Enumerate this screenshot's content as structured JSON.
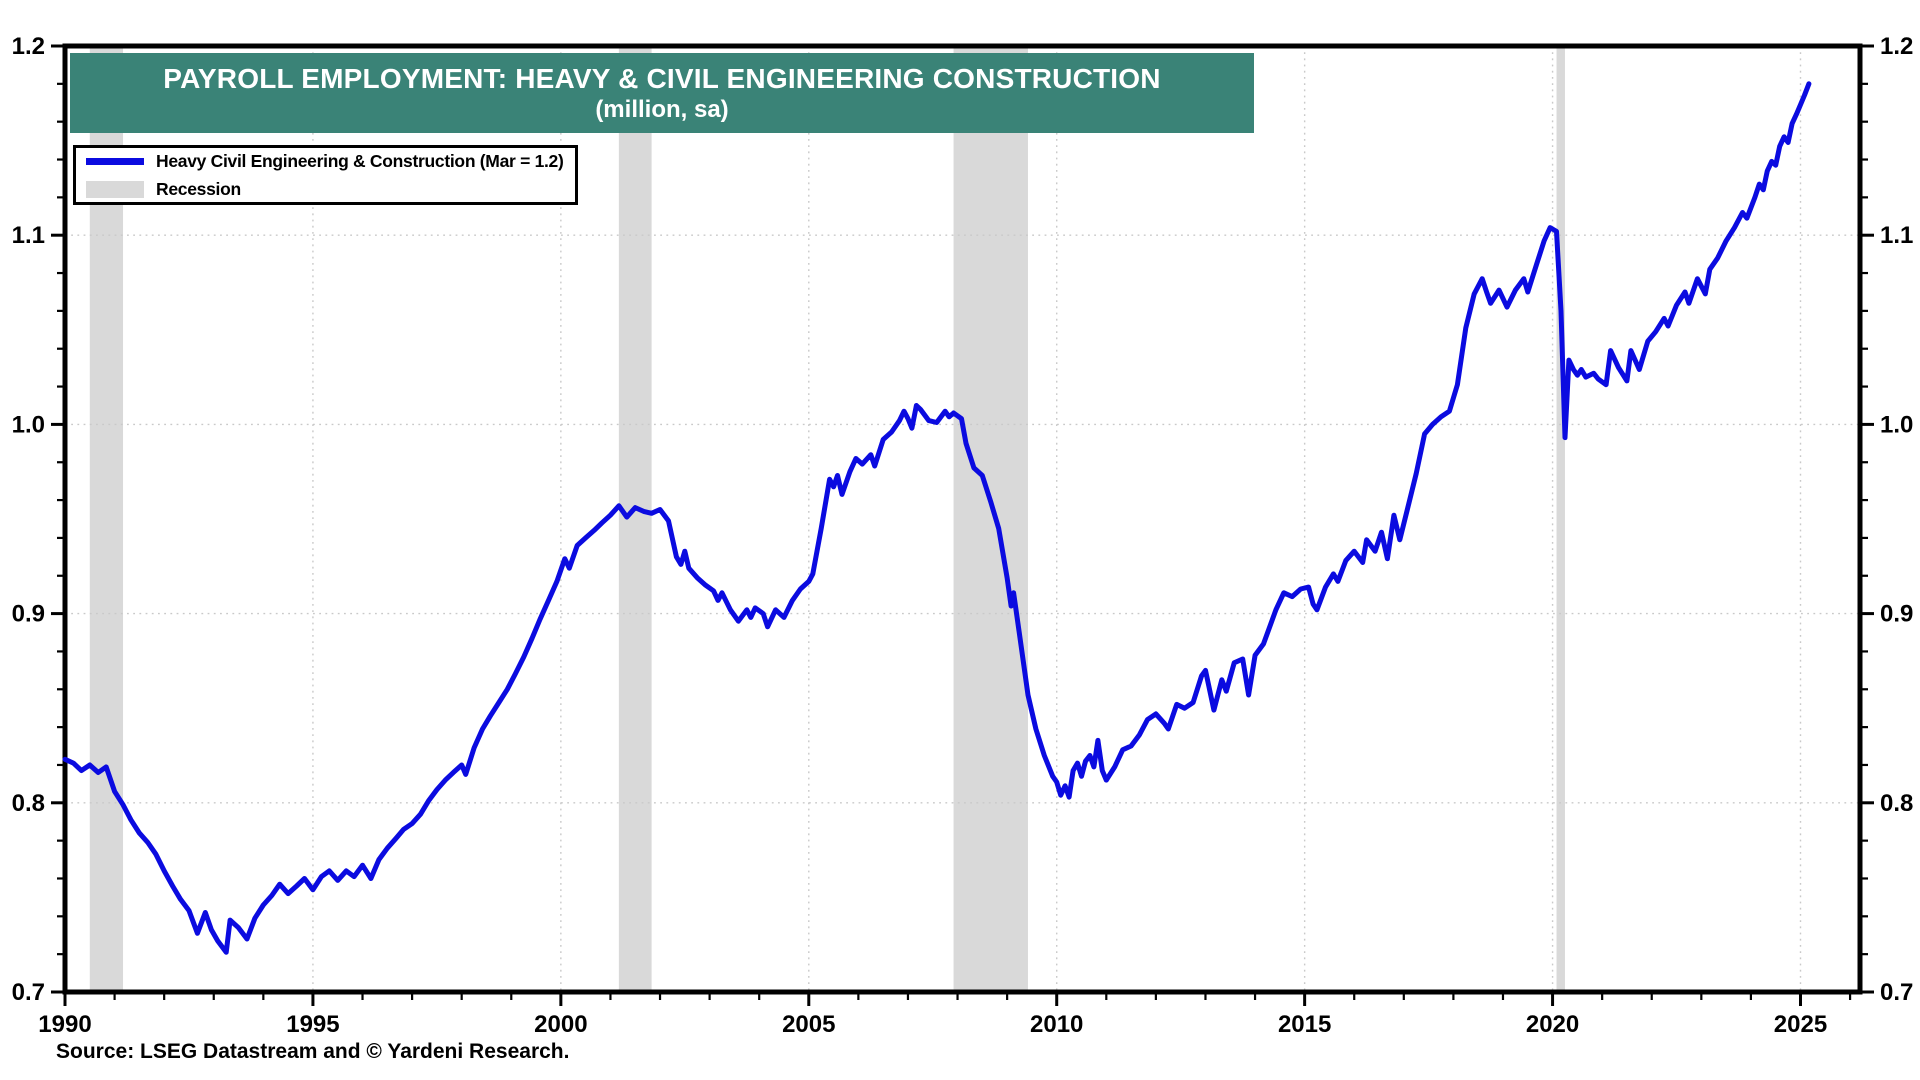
{
  "banner": {
    "title": "PAYROLL EMPLOYMENT: HEAVY & CIVIL ENGINEERING CONSTRUCTION",
    "subtitle": "(million, sa)"
  },
  "legend": {
    "series_label": "Heavy Civil Engineering & Construction (Mar = 1.2)",
    "recession_label": "Recession"
  },
  "source_note": "Source: LSEG Datastream and © Yardeni Research.",
  "chart_data": {
    "type": "line",
    "title": "PAYROLL EMPLOYMENT: HEAVY & CIVIL ENGINEERING CONSTRUCTION",
    "subtitle": "(million, sa)",
    "xlabel": "",
    "ylabel": "million, seasonally adjusted",
    "xlim": [
      1990,
      2026.2
    ],
    "ylim": [
      0.7,
      1.2
    ],
    "x_tick_labels": [
      "1990",
      "1995",
      "2000",
      "2005",
      "2010",
      "2015",
      "2020",
      "2025"
    ],
    "y_tick_labels": [
      "0.7",
      "0.8",
      "0.9",
      "1.0",
      "1.1",
      "1.2"
    ],
    "y_minor_step": 0.02,
    "x_minor_step_years": 1,
    "grid": "dotted lines at major ticks, both axes",
    "legend_position": "top-left",
    "dual_y_axis": true,
    "recession_bands": [
      [
        1990.5,
        1991.17
      ],
      [
        2001.17,
        2001.83
      ],
      [
        2007.92,
        2009.42
      ],
      [
        2020.08,
        2020.25
      ]
    ],
    "colors": {
      "line": "#0b0be0",
      "recession": "#d9d9d9",
      "banner": "#3a8377",
      "grid": "#c9c9c9",
      "axis": "#000000",
      "legend_border": "#000000"
    },
    "series": [
      {
        "name": "Heavy Civil Engineering & Construction",
        "frequency": "monthly (anchor points, year-fraction vs million)",
        "last_point_label": "Mar 2025 = 1.18",
        "points": [
          [
            1990.0,
            0.823
          ],
          [
            1990.17,
            0.821
          ],
          [
            1990.33,
            0.817
          ],
          [
            1990.5,
            0.82
          ],
          [
            1990.67,
            0.816
          ],
          [
            1990.83,
            0.819
          ],
          [
            1991.0,
            0.806
          ],
          [
            1991.17,
            0.799
          ],
          [
            1991.33,
            0.791
          ],
          [
            1991.5,
            0.784
          ],
          [
            1991.67,
            0.779
          ],
          [
            1991.83,
            0.773
          ],
          [
            1992.0,
            0.764
          ],
          [
            1992.17,
            0.756
          ],
          [
            1992.33,
            0.749
          ],
          [
            1992.5,
            0.743
          ],
          [
            1992.67,
            0.731
          ],
          [
            1992.83,
            0.742
          ],
          [
            1992.95,
            0.733
          ],
          [
            1993.08,
            0.727
          ],
          [
            1993.25,
            0.721
          ],
          [
            1993.33,
            0.738
          ],
          [
            1993.5,
            0.734
          ],
          [
            1993.67,
            0.728
          ],
          [
            1993.83,
            0.739
          ],
          [
            1994.0,
            0.746
          ],
          [
            1994.17,
            0.751
          ],
          [
            1994.33,
            0.757
          ],
          [
            1994.5,
            0.752
          ],
          [
            1994.67,
            0.756
          ],
          [
            1994.83,
            0.76
          ],
          [
            1995.0,
            0.754
          ],
          [
            1995.17,
            0.761
          ],
          [
            1995.33,
            0.764
          ],
          [
            1995.5,
            0.759
          ],
          [
            1995.67,
            0.764
          ],
          [
            1995.83,
            0.761
          ],
          [
            1996.0,
            0.767
          ],
          [
            1996.17,
            0.76
          ],
          [
            1996.33,
            0.77
          ],
          [
            1996.5,
            0.776
          ],
          [
            1996.67,
            0.781
          ],
          [
            1996.83,
            0.786
          ],
          [
            1997.0,
            0.789
          ],
          [
            1997.17,
            0.794
          ],
          [
            1997.33,
            0.801
          ],
          [
            1997.5,
            0.807
          ],
          [
            1997.67,
            0.812
          ],
          [
            1997.83,
            0.816
          ],
          [
            1998.0,
            0.82
          ],
          [
            1998.08,
            0.815
          ],
          [
            1998.25,
            0.829
          ],
          [
            1998.42,
            0.839
          ],
          [
            1998.58,
            0.846
          ],
          [
            1998.75,
            0.853
          ],
          [
            1998.92,
            0.86
          ],
          [
            1999.08,
            0.868
          ],
          [
            1999.25,
            0.877
          ],
          [
            1999.42,
            0.887
          ],
          [
            1999.58,
            0.897
          ],
          [
            1999.75,
            0.907
          ],
          [
            1999.92,
            0.917
          ],
          [
            2000.08,
            0.929
          ],
          [
            2000.17,
            0.924
          ],
          [
            2000.33,
            0.936
          ],
          [
            2000.5,
            0.94
          ],
          [
            2000.67,
            0.944
          ],
          [
            2000.83,
            0.948
          ],
          [
            2001.0,
            0.952
          ],
          [
            2001.17,
            0.957
          ],
          [
            2001.33,
            0.951
          ],
          [
            2001.5,
            0.956
          ],
          [
            2001.67,
            0.954
          ],
          [
            2001.83,
            0.953
          ],
          [
            2002.0,
            0.955
          ],
          [
            2002.17,
            0.949
          ],
          [
            2002.33,
            0.93
          ],
          [
            2002.42,
            0.926
          ],
          [
            2002.5,
            0.933
          ],
          [
            2002.58,
            0.924
          ],
          [
            2002.75,
            0.919
          ],
          [
            2002.92,
            0.915
          ],
          [
            2003.08,
            0.912
          ],
          [
            2003.17,
            0.907
          ],
          [
            2003.25,
            0.911
          ],
          [
            2003.42,
            0.902
          ],
          [
            2003.58,
            0.896
          ],
          [
            2003.75,
            0.902
          ],
          [
            2003.83,
            0.898
          ],
          [
            2003.92,
            0.903
          ],
          [
            2004.08,
            0.9
          ],
          [
            2004.17,
            0.893
          ],
          [
            2004.33,
            0.902
          ],
          [
            2004.5,
            0.898
          ],
          [
            2004.67,
            0.907
          ],
          [
            2004.83,
            0.913
          ],
          [
            2005.0,
            0.917
          ],
          [
            2005.08,
            0.921
          ],
          [
            2005.25,
            0.945
          ],
          [
            2005.42,
            0.971
          ],
          [
            2005.5,
            0.967
          ],
          [
            2005.58,
            0.973
          ],
          [
            2005.67,
            0.963
          ],
          [
            2005.83,
            0.975
          ],
          [
            2005.95,
            0.982
          ],
          [
            2006.08,
            0.979
          ],
          [
            2006.25,
            0.984
          ],
          [
            2006.33,
            0.978
          ],
          [
            2006.5,
            0.992
          ],
          [
            2006.67,
            0.996
          ],
          [
            2006.83,
            1.002
          ],
          [
            2006.92,
            1.007
          ],
          [
            2007.0,
            1.003
          ],
          [
            2007.08,
            0.998
          ],
          [
            2007.17,
            1.01
          ],
          [
            2007.25,
            1.008
          ],
          [
            2007.42,
            1.002
          ],
          [
            2007.58,
            1.001
          ],
          [
            2007.75,
            1.007
          ],
          [
            2007.83,
            1.004
          ],
          [
            2007.92,
            1.006
          ],
          [
            2008.08,
            1.003
          ],
          [
            2008.17,
            0.99
          ],
          [
            2008.33,
            0.977
          ],
          [
            2008.5,
            0.973
          ],
          [
            2008.67,
            0.959
          ],
          [
            2008.83,
            0.945
          ],
          [
            2009.0,
            0.919
          ],
          [
            2009.08,
            0.904
          ],
          [
            2009.13,
            0.911
          ],
          [
            2009.25,
            0.889
          ],
          [
            2009.42,
            0.857
          ],
          [
            2009.58,
            0.839
          ],
          [
            2009.75,
            0.825
          ],
          [
            2009.92,
            0.814
          ],
          [
            2010.0,
            0.811
          ],
          [
            2010.08,
            0.804
          ],
          [
            2010.17,
            0.809
          ],
          [
            2010.25,
            0.803
          ],
          [
            2010.33,
            0.817
          ],
          [
            2010.42,
            0.821
          ],
          [
            2010.5,
            0.814
          ],
          [
            2010.58,
            0.822
          ],
          [
            2010.67,
            0.825
          ],
          [
            2010.75,
            0.819
          ],
          [
            2010.83,
            0.833
          ],
          [
            2010.92,
            0.817
          ],
          [
            2011.0,
            0.812
          ],
          [
            2011.17,
            0.819
          ],
          [
            2011.33,
            0.828
          ],
          [
            2011.5,
            0.83
          ],
          [
            2011.67,
            0.836
          ],
          [
            2011.83,
            0.844
          ],
          [
            2012.0,
            0.847
          ],
          [
            2012.17,
            0.842
          ],
          [
            2012.25,
            0.839
          ],
          [
            2012.42,
            0.852
          ],
          [
            2012.58,
            0.85
          ],
          [
            2012.75,
            0.853
          ],
          [
            2012.92,
            0.867
          ],
          [
            2013.0,
            0.87
          ],
          [
            2013.17,
            0.849
          ],
          [
            2013.33,
            0.865
          ],
          [
            2013.42,
            0.859
          ],
          [
            2013.58,
            0.874
          ],
          [
            2013.75,
            0.876
          ],
          [
            2013.87,
            0.857
          ],
          [
            2014.0,
            0.878
          ],
          [
            2014.17,
            0.884
          ],
          [
            2014.42,
            0.902
          ],
          [
            2014.58,
            0.911
          ],
          [
            2014.75,
            0.909
          ],
          [
            2014.92,
            0.913
          ],
          [
            2015.08,
            0.914
          ],
          [
            2015.17,
            0.905
          ],
          [
            2015.25,
            0.902
          ],
          [
            2015.42,
            0.914
          ],
          [
            2015.58,
            0.921
          ],
          [
            2015.67,
            0.917
          ],
          [
            2015.83,
            0.928
          ],
          [
            2016.0,
            0.933
          ],
          [
            2016.17,
            0.927
          ],
          [
            2016.25,
            0.939
          ],
          [
            2016.42,
            0.933
          ],
          [
            2016.55,
            0.943
          ],
          [
            2016.67,
            0.929
          ],
          [
            2016.8,
            0.952
          ],
          [
            2016.92,
            0.939
          ],
          [
            2017.08,
            0.956
          ],
          [
            2017.25,
            0.974
          ],
          [
            2017.42,
            0.995
          ],
          [
            2017.58,
            1.0
          ],
          [
            2017.75,
            1.004
          ],
          [
            2017.92,
            1.007
          ],
          [
            2018.08,
            1.021
          ],
          [
            2018.25,
            1.051
          ],
          [
            2018.42,
            1.069
          ],
          [
            2018.58,
            1.077
          ],
          [
            2018.67,
            1.07
          ],
          [
            2018.75,
            1.064
          ],
          [
            2018.92,
            1.071
          ],
          [
            2019.08,
            1.062
          ],
          [
            2019.25,
            1.071
          ],
          [
            2019.42,
            1.077
          ],
          [
            2019.5,
            1.07
          ],
          [
            2019.67,
            1.084
          ],
          [
            2019.83,
            1.097
          ],
          [
            2019.95,
            1.104
          ],
          [
            2020.08,
            1.102
          ],
          [
            2020.17,
            1.06
          ],
          [
            2020.25,
            0.993
          ],
          [
            2020.33,
            1.034
          ],
          [
            2020.42,
            1.029
          ],
          [
            2020.5,
            1.026
          ],
          [
            2020.58,
            1.029
          ],
          [
            2020.67,
            1.025
          ],
          [
            2020.83,
            1.027
          ],
          [
            2020.92,
            1.024
          ],
          [
            2021.08,
            1.021
          ],
          [
            2021.17,
            1.039
          ],
          [
            2021.33,
            1.03
          ],
          [
            2021.5,
            1.023
          ],
          [
            2021.58,
            1.039
          ],
          [
            2021.75,
            1.029
          ],
          [
            2021.92,
            1.044
          ],
          [
            2022.08,
            1.049
          ],
          [
            2022.25,
            1.056
          ],
          [
            2022.33,
            1.052
          ],
          [
            2022.5,
            1.063
          ],
          [
            2022.67,
            1.07
          ],
          [
            2022.75,
            1.064
          ],
          [
            2022.92,
            1.077
          ],
          [
            2023.08,
            1.069
          ],
          [
            2023.17,
            1.082
          ],
          [
            2023.33,
            1.088
          ],
          [
            2023.5,
            1.097
          ],
          [
            2023.67,
            1.104
          ],
          [
            2023.83,
            1.112
          ],
          [
            2023.92,
            1.109
          ],
          [
            2024.08,
            1.12
          ],
          [
            2024.17,
            1.127
          ],
          [
            2024.25,
            1.124
          ],
          [
            2024.33,
            1.134
          ],
          [
            2024.42,
            1.139
          ],
          [
            2024.5,
            1.137
          ],
          [
            2024.58,
            1.147
          ],
          [
            2024.67,
            1.152
          ],
          [
            2024.75,
            1.149
          ],
          [
            2024.83,
            1.159
          ],
          [
            2024.92,
            1.164
          ],
          [
            2025.0,
            1.169
          ],
          [
            2025.08,
            1.174
          ],
          [
            2025.17,
            1.18
          ]
        ]
      }
    ]
  }
}
